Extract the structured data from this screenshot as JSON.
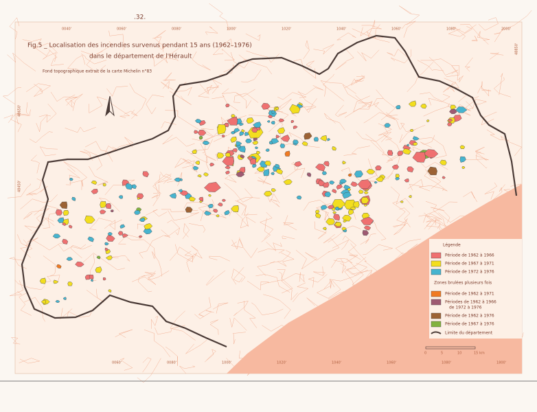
{
  "page_number": ".32.",
  "title": {
    "line1": "Fig.5 _ Localisation des incendies survenus pendant 15 ans (1962–1976)",
    "line2": "dans le département de l'Hérault",
    "source": "Fond topographique extrait de la carte Michelin n°83"
  },
  "legend": {
    "title": "Légende",
    "periods": [
      {
        "label": "Période de 1962 à 1966",
        "color": "#ef7070"
      },
      {
        "label": "Période de 1967 à 1971",
        "color": "#f3de1e"
      },
      {
        "label": "Période de 1972 à 1976",
        "color": "#46b4cf"
      }
    ],
    "multi_title": "Zones brulées plusieurs fois",
    "multi": [
      {
        "label": [
          "Période de 1962 à 1971"
        ],
        "color": "#f07a22"
      },
      {
        "label": [
          "Périodes de 1962 à 1966",
          "de 1972 à 1976"
        ],
        "color": "#9e5a72"
      },
      {
        "label": [
          "Période de 1962 à 1976"
        ],
        "color": "#9c6234"
      },
      {
        "label": [
          "Période de 1967 à 1976"
        ],
        "color": "#82b23e"
      }
    ],
    "boundary": "Limite du département"
  },
  "scale": {
    "ticks": [
      "0",
      "5",
      "10",
      "15 km"
    ]
  },
  "graticule": {
    "top": [
      "0040'",
      "0060'",
      "0080'",
      "1000'",
      "1020'",
      "1040'",
      "1060'",
      "1080'",
      "2000'"
    ],
    "bottom": [
      "0060'",
      "0080'",
      "1000'",
      "1020'",
      "1040'",
      "1060'",
      "1080'",
      "1800'"
    ],
    "left": [
      "48650'",
      "48450'"
    ],
    "right": [
      "48850'"
    ]
  }
}
